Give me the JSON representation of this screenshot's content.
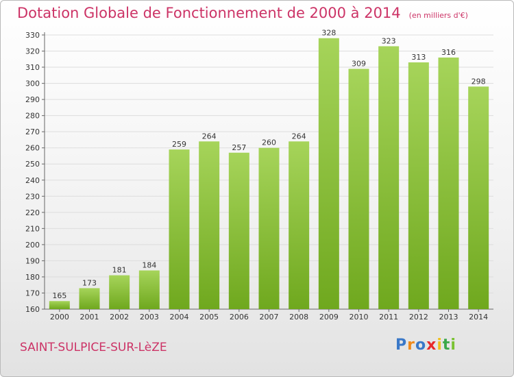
{
  "title": "Dotation Globale de Fonctionnement de 2000 à 2014",
  "subtitle": "(en milliers d'€)",
  "commune": "SAINT-SULPICE-SUR-LèZE",
  "logo": {
    "text": "Proxiti",
    "colors": [
      "#3a78c8",
      "#f08a1c",
      "#3a78c8",
      "#e8282a",
      "#f0c020",
      "#3aa84a",
      "#7ac232"
    ]
  },
  "colors": {
    "bar_light": "#a6d45a",
    "bar_dark": "#6fa81e",
    "title": "#cc3366",
    "grid": "#dddddd"
  },
  "chart_data": {
    "type": "bar",
    "categories": [
      "2000",
      "2001",
      "2002",
      "2003",
      "2004",
      "2005",
      "2006",
      "2007",
      "2008",
      "2009",
      "2010",
      "2011",
      "2012",
      "2013",
      "2014"
    ],
    "values": [
      165,
      173,
      181,
      184,
      259,
      264,
      257,
      260,
      264,
      328,
      309,
      323,
      313,
      316,
      298
    ],
    "value_labels": [
      "165",
      "173",
      "181",
      "184",
      "259",
      "264",
      "257",
      "260",
      "264",
      "328",
      "309",
      "323",
      "313",
      "316",
      "298"
    ],
    "yticks": [
      "160",
      "170",
      "180",
      "190",
      "200",
      "210",
      "220",
      "230",
      "240",
      "250",
      "260",
      "270",
      "280",
      "290",
      "300",
      "310",
      "320",
      "330"
    ],
    "ylim": [
      160,
      330
    ],
    "grid": true
  }
}
